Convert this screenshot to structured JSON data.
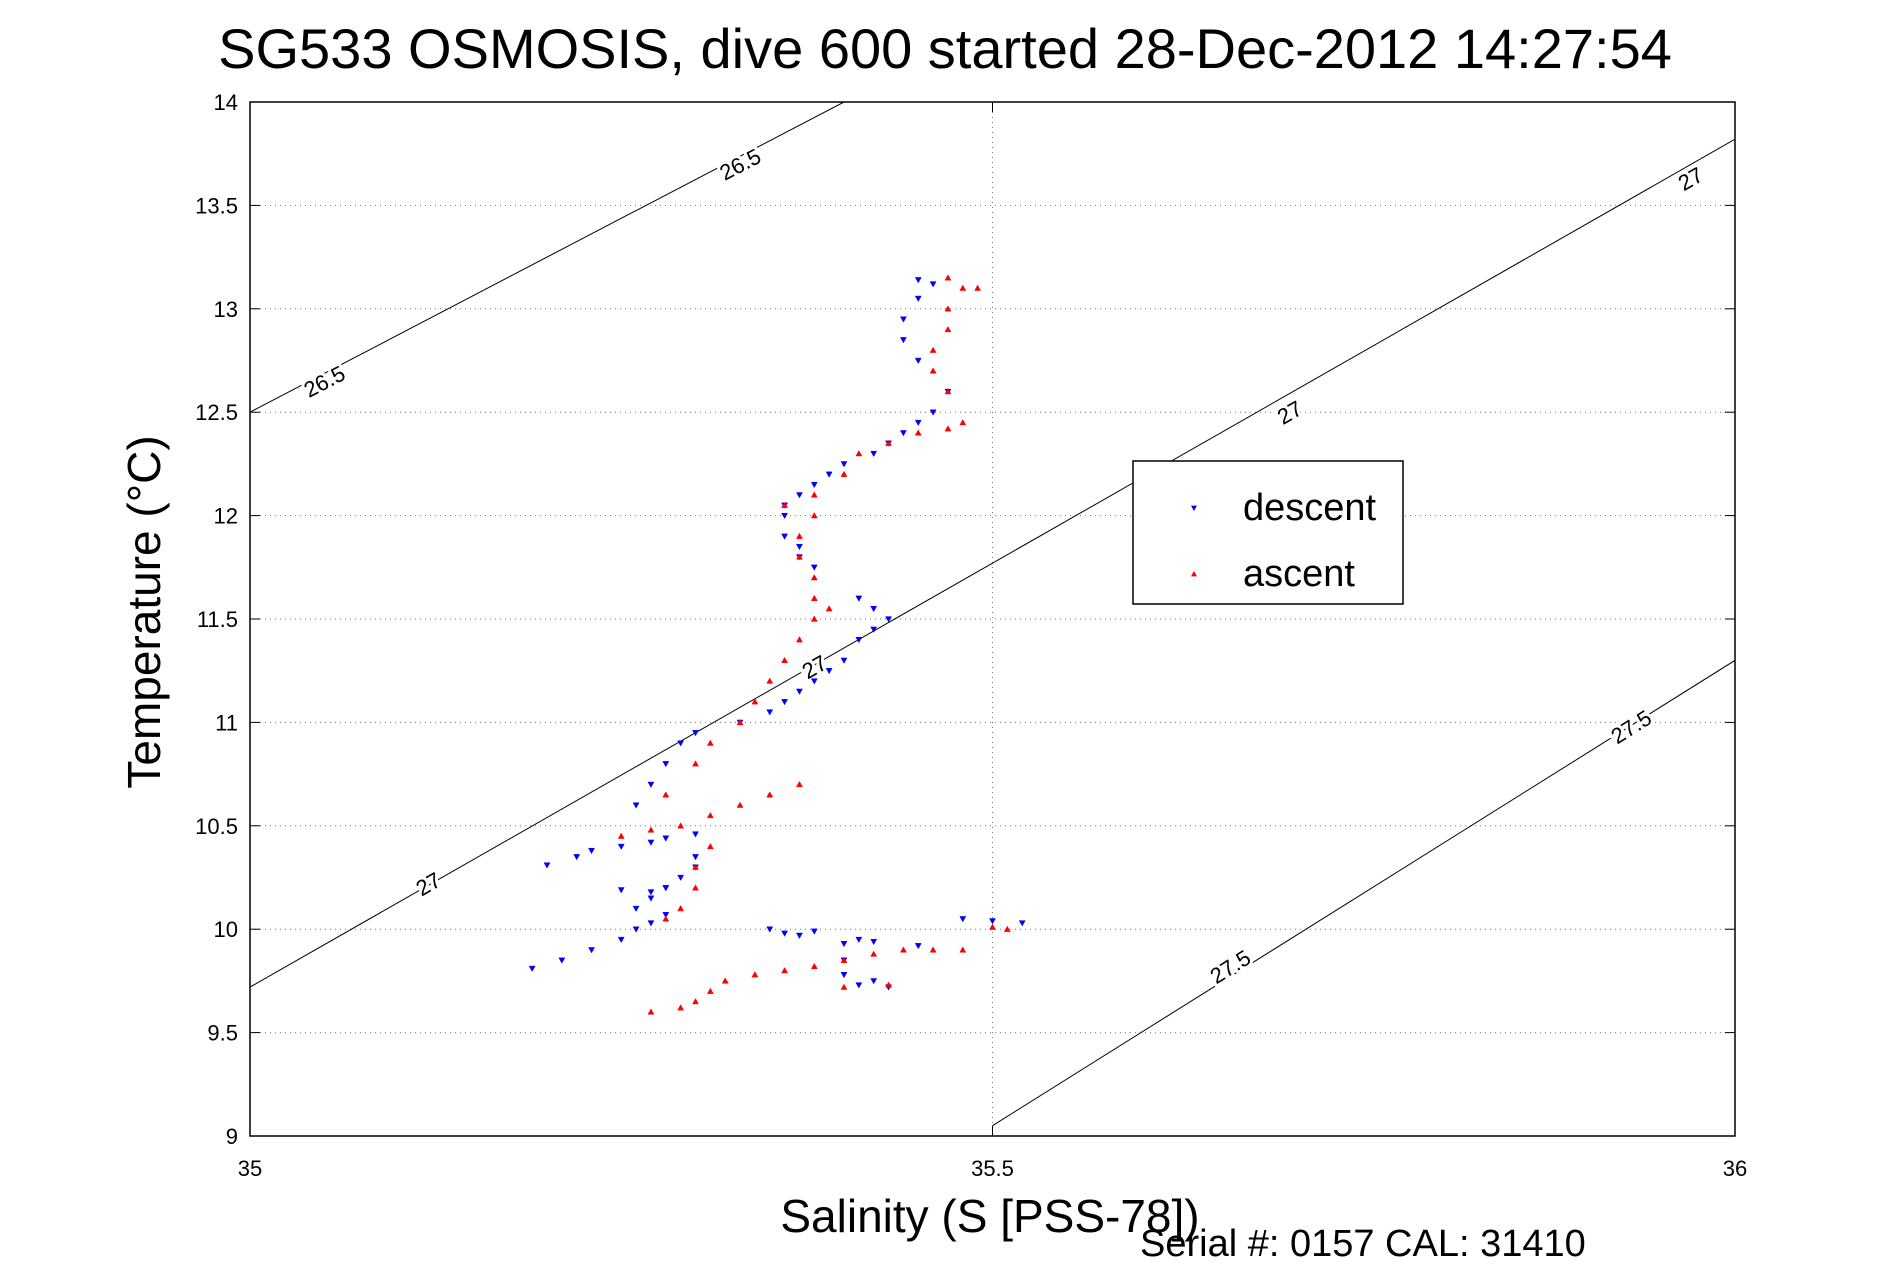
{
  "chart_data": {
    "type": "scatter",
    "title": "SG533 OSMOSIS, dive 600 started 28-Dec-2012 14:27:54",
    "xlabel": "Salinity (S [PSS-78])",
    "ylabel": "Temperature (°C)",
    "xlim": [
      35,
      36
    ],
    "ylim": [
      9,
      14
    ],
    "xticks": [
      "35",
      "35.5",
      "36"
    ],
    "yticks": [
      "9",
      "9.5",
      "10",
      "10.5",
      "11",
      "11.5",
      "12",
      "12.5",
      "13",
      "13.5",
      "14"
    ],
    "grid": "dotted",
    "legend_position": "right-middle",
    "series": [
      {
        "name": "descent",
        "color": "#0000ff",
        "marker": "triangle-down",
        "points": [
          [
            35.35,
            10.0
          ],
          [
            35.36,
            9.98
          ],
          [
            35.37,
            9.97
          ],
          [
            35.38,
            9.99
          ],
          [
            35.4,
            9.93
          ],
          [
            35.41,
            9.95
          ],
          [
            35.42,
            9.94
          ],
          [
            35.4,
            9.85
          ],
          [
            35.4,
            9.78
          ],
          [
            35.41,
            9.73
          ],
          [
            35.43,
            9.72
          ],
          [
            35.42,
            9.75
          ],
          [
            35.45,
            9.92
          ],
          [
            35.48,
            10.05
          ],
          [
            35.5,
            10.04
          ],
          [
            35.52,
            10.03
          ],
          [
            35.19,
            9.81
          ],
          [
            35.21,
            9.85
          ],
          [
            35.23,
            9.9
          ],
          [
            35.25,
            9.95
          ],
          [
            35.26,
            10.0
          ],
          [
            35.27,
            10.03
          ],
          [
            35.28,
            10.07
          ],
          [
            35.26,
            10.1
          ],
          [
            35.27,
            10.15
          ],
          [
            35.28,
            10.2
          ],
          [
            35.29,
            10.25
          ],
          [
            35.3,
            10.3
          ],
          [
            35.3,
            10.35
          ],
          [
            35.25,
            10.19
          ],
          [
            35.27,
            10.18
          ],
          [
            35.28,
            10.2
          ],
          [
            35.2,
            10.31
          ],
          [
            35.22,
            10.35
          ],
          [
            35.23,
            10.38
          ],
          [
            35.25,
            10.4
          ],
          [
            35.27,
            10.42
          ],
          [
            35.28,
            10.44
          ],
          [
            35.3,
            10.46
          ],
          [
            35.26,
            10.6
          ],
          [
            35.27,
            10.7
          ],
          [
            35.28,
            10.8
          ],
          [
            35.29,
            10.9
          ],
          [
            35.3,
            10.95
          ],
          [
            35.33,
            11.0
          ],
          [
            35.35,
            11.05
          ],
          [
            35.36,
            11.1
          ],
          [
            35.37,
            11.15
          ],
          [
            35.38,
            11.2
          ],
          [
            35.39,
            11.25
          ],
          [
            35.4,
            11.3
          ],
          [
            35.41,
            11.4
          ],
          [
            35.42,
            11.45
          ],
          [
            35.43,
            11.5
          ],
          [
            35.42,
            11.55
          ],
          [
            35.41,
            11.6
          ],
          [
            35.38,
            11.75
          ],
          [
            35.37,
            11.8
          ],
          [
            35.37,
            11.85
          ],
          [
            35.36,
            11.9
          ],
          [
            35.36,
            12.0
          ],
          [
            35.36,
            12.05
          ],
          [
            35.37,
            12.1
          ],
          [
            35.38,
            12.15
          ],
          [
            35.39,
            12.2
          ],
          [
            35.4,
            12.25
          ],
          [
            35.42,
            12.3
          ],
          [
            35.43,
            12.35
          ],
          [
            35.44,
            12.4
          ],
          [
            35.45,
            12.45
          ],
          [
            35.46,
            12.5
          ],
          [
            35.47,
            12.6
          ],
          [
            35.45,
            12.75
          ],
          [
            35.44,
            12.85
          ],
          [
            35.44,
            12.95
          ],
          [
            35.45,
            13.05
          ],
          [
            35.46,
            13.12
          ],
          [
            35.45,
            13.14
          ]
        ]
      },
      {
        "name": "ascent",
        "color": "#ff0000",
        "marker": "triangle-up",
        "points": [
          [
            35.27,
            9.6
          ],
          [
            35.29,
            9.62
          ],
          [
            35.3,
            9.65
          ],
          [
            35.31,
            9.7
          ],
          [
            35.32,
            9.75
          ],
          [
            35.34,
            9.78
          ],
          [
            35.36,
            9.8
          ],
          [
            35.38,
            9.82
          ],
          [
            35.4,
            9.85
          ],
          [
            35.42,
            9.88
          ],
          [
            35.44,
            9.9
          ],
          [
            35.46,
            9.9
          ],
          [
            35.48,
            9.9
          ],
          [
            35.4,
            9.72
          ],
          [
            35.43,
            9.73
          ],
          [
            35.5,
            10.01
          ],
          [
            35.51,
            10.0
          ],
          [
            35.28,
            10.05
          ],
          [
            35.29,
            10.1
          ],
          [
            35.3,
            10.2
          ],
          [
            35.3,
            10.3
          ],
          [
            35.31,
            10.4
          ],
          [
            35.25,
            10.45
          ],
          [
            35.27,
            10.48
          ],
          [
            35.29,
            10.5
          ],
          [
            35.31,
            10.55
          ],
          [
            35.33,
            10.6
          ],
          [
            35.35,
            10.65
          ],
          [
            35.37,
            10.7
          ],
          [
            35.28,
            10.65
          ],
          [
            35.3,
            10.8
          ],
          [
            35.31,
            10.9
          ],
          [
            35.33,
            11.0
          ],
          [
            35.34,
            11.1
          ],
          [
            35.35,
            11.2
          ],
          [
            35.36,
            11.3
          ],
          [
            35.37,
            11.4
          ],
          [
            35.38,
            11.5
          ],
          [
            35.39,
            11.55
          ],
          [
            35.38,
            11.6
          ],
          [
            35.38,
            11.7
          ],
          [
            35.37,
            11.8
          ],
          [
            35.37,
            11.9
          ],
          [
            35.38,
            12.0
          ],
          [
            35.36,
            12.05
          ],
          [
            35.38,
            12.1
          ],
          [
            35.4,
            12.2
          ],
          [
            35.41,
            12.3
          ],
          [
            35.43,
            12.35
          ],
          [
            35.45,
            12.4
          ],
          [
            35.47,
            12.42
          ],
          [
            35.48,
            12.45
          ],
          [
            35.47,
            12.6
          ],
          [
            35.46,
            12.7
          ],
          [
            35.46,
            12.8
          ],
          [
            35.47,
            12.9
          ],
          [
            35.47,
            13.0
          ],
          [
            35.48,
            13.1
          ],
          [
            35.47,
            13.15
          ],
          [
            35.49,
            13.1
          ]
        ]
      }
    ],
    "contours": [
      {
        "label": "26.5",
        "points": [
          [
            35.0,
            12.5
          ],
          [
            35.4,
            14.0
          ]
        ],
        "label_positions": [
          [
            35.05,
            12.65
          ],
          [
            35.33,
            13.7
          ]
        ]
      },
      {
        "label": "27",
        "points": [
          [
            35.0,
            9.72
          ],
          [
            36.0,
            13.82
          ]
        ],
        "label_positions": [
          [
            35.12,
            10.22
          ],
          [
            35.38,
            11.27
          ],
          [
            35.7,
            12.5
          ],
          [
            35.97,
            13.63
          ]
        ]
      },
      {
        "label": "27.5",
        "points": [
          [
            35.5,
            9.05
          ],
          [
            36.0,
            11.3
          ]
        ],
        "label_positions": [
          [
            35.66,
            9.82
          ],
          [
            35.93,
            10.98
          ]
        ]
      }
    ]
  },
  "footer": {
    "serial_text": "Serial #: 0157  CAL: 31410"
  }
}
